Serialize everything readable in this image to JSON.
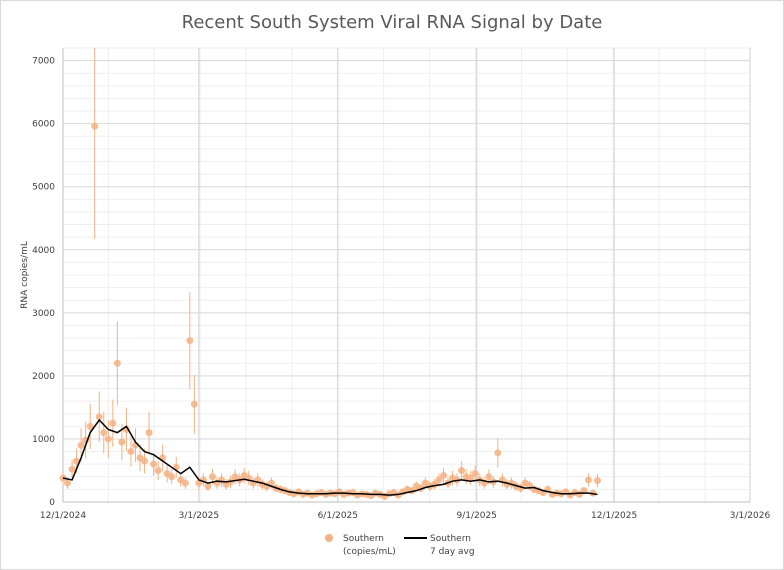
{
  "chart_data": {
    "type": "scatter",
    "title": "Recent South System Viral RNA Signal by Date",
    "xlabel": "",
    "ylabel": "RNA copies/mL",
    "x_unit": "days since 12/1/2024",
    "xlim": [
      0,
      455
    ],
    "ylim": [
      0,
      7200
    ],
    "grid": true,
    "legend_position": "bottom",
    "x_ticks": [
      {
        "day": 0,
        "label": "12/1/2024"
      },
      {
        "day": 90,
        "label": "3/1/2025"
      },
      {
        "day": 182,
        "label": "6/1/2025"
      },
      {
        "day": 274,
        "label": "9/1/2025"
      },
      {
        "day": 365,
        "label": "12/1/2025"
      },
      {
        "day": 455,
        "label": "3/1/2026"
      }
    ],
    "y_ticks": [
      0,
      1000,
      2000,
      3000,
      4000,
      5000,
      6000,
      7000
    ],
    "colors": {
      "points": "#f4b183",
      "points_dark": "#ed7d31",
      "avg": "#000000"
    },
    "series": [
      {
        "name": "Southern (copies/mL)",
        "legend_lines": [
          "Southern",
          "(copies/mL)"
        ],
        "kind": "points-with-error-bars",
        "error_fraction": 0.3,
        "x": [
          0,
          3,
          6,
          9,
          12,
          15,
          18,
          21,
          24,
          27,
          30,
          33,
          36,
          39,
          42,
          45,
          48,
          51,
          54,
          57,
          60,
          63,
          66,
          69,
          72,
          75,
          78,
          81,
          84,
          87,
          90,
          93,
          96,
          99,
          102,
          105,
          108,
          111,
          114,
          117,
          120,
          123,
          126,
          129,
          132,
          135,
          138,
          141,
          144,
          147,
          150,
          153,
          156,
          159,
          162,
          165,
          168,
          171,
          174,
          177,
          180,
          183,
          186,
          189,
          192,
          195,
          198,
          201,
          204,
          207,
          210,
          213,
          216,
          219,
          222,
          225,
          228,
          231,
          234,
          237,
          240,
          243,
          246,
          249,
          252,
          255,
          258,
          261,
          264,
          267,
          270,
          273,
          276,
          279,
          282,
          285,
          288,
          291,
          294,
          297,
          300,
          303,
          306,
          309,
          312,
          315,
          318,
          321,
          324,
          327,
          330,
          333,
          336,
          339,
          342,
          345,
          348,
          351,
          354
        ],
        "values": [
          380,
          300,
          520,
          650,
          900,
          980,
          1200,
          5960,
          1350,
          1100,
          1000,
          1250,
          2200,
          950,
          1150,
          800,
          900,
          700,
          650,
          1100,
          600,
          500,
          700,
          450,
          400,
          550,
          350,
          300,
          2560,
          1550,
          300,
          350,
          250,
          400,
          300,
          350,
          280,
          320,
          400,
          350,
          420,
          380,
          300,
          350,
          280,
          250,
          300,
          220,
          200,
          180,
          150,
          130,
          160,
          120,
          140,
          110,
          130,
          150,
          120,
          140,
          130,
          160,
          120,
          140,
          150,
          110,
          130,
          120,
          100,
          140,
          120,
          90,
          130,
          150,
          110,
          160,
          200,
          180,
          250,
          220,
          300,
          250,
          280,
          350,
          420,
          300,
          380,
          350,
          500,
          400,
          380,
          450,
          350,
          300,
          400,
          320,
          780,
          350,
          280,
          300,
          250,
          220,
          300,
          260,
          200,
          180,
          150,
          200,
          120,
          140,
          130,
          160,
          110,
          150,
          120,
          180,
          350,
          140,
          340
        ]
      },
      {
        "name": "Southern 7 day avg",
        "legend_lines": [
          "Southern",
          "7 day avg"
        ],
        "kind": "line",
        "x": [
          0,
          6,
          12,
          18,
          24,
          30,
          36,
          42,
          48,
          54,
          60,
          66,
          72,
          78,
          84,
          90,
          96,
          102,
          108,
          114,
          120,
          126,
          132,
          138,
          144,
          150,
          156,
          162,
          168,
          174,
          180,
          186,
          192,
          198,
          204,
          210,
          216,
          222,
          228,
          234,
          240,
          246,
          252,
          258,
          264,
          270,
          276,
          282,
          288,
          294,
          300,
          306,
          312,
          318,
          324,
          330,
          336,
          342,
          348,
          354
        ],
        "values": [
          380,
          350,
          700,
          1100,
          1300,
          1150,
          1100,
          1200,
          950,
          800,
          750,
          650,
          550,
          450,
          550,
          350,
          300,
          330,
          320,
          340,
          360,
          330,
          300,
          250,
          200,
          160,
          140,
          130,
          130,
          130,
          140,
          140,
          130,
          130,
          120,
          120,
          110,
          120,
          150,
          180,
          230,
          260,
          280,
          330,
          350,
          330,
          350,
          320,
          330,
          300,
          260,
          220,
          230,
          180,
          150,
          130,
          130,
          140,
          140,
          120
        ]
      }
    ]
  }
}
